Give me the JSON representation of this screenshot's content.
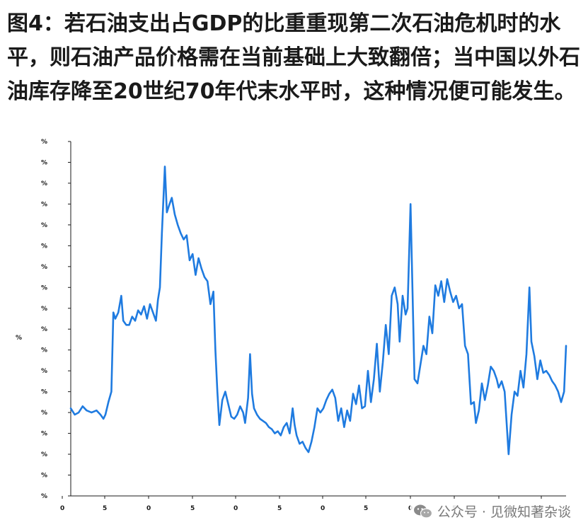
{
  "caption": "图4：若石油支出占GDP的比重重现第二次石油危机时的水平，则石油产品价格需在当前基础上大致翻倍；当中国以外石油库存降至20世纪70年代末水平时，这种情况便可能发生。",
  "watermark": {
    "text": "公众号 · 见微知著杂谈",
    "icon": "wechat-icon"
  },
  "colors": {
    "line": "#1f7be0",
    "axis": "#1a1a1a",
    "text": "#1a1a1a"
  },
  "chart_data": {
    "type": "line",
    "title": "",
    "xlabel": "",
    "ylabel": "%",
    "y_tick_labels": [
      "%",
      "%",
      "%",
      "%",
      "%",
      "%",
      "%",
      "%",
      "%",
      "%",
      "%",
      "%",
      "%",
      "%",
      "%",
      "%",
      "%",
      "%"
    ],
    "x_tick_labels": [
      "0",
      "5",
      "0",
      "5",
      "0",
      "5",
      "0",
      "5",
      "0",
      "5",
      "0",
      "5"
    ],
    "x_range": [
      0,
      1000
    ],
    "ylim": [
      0,
      17
    ],
    "grid": false,
    "legend": "none",
    "series": [
      {
        "values": [
          [
            0,
            4.2
          ],
          [
            8,
            3.9
          ],
          [
            16,
            4.0
          ],
          [
            24,
            4.3
          ],
          [
            32,
            4.1
          ],
          [
            42,
            4.0
          ],
          [
            52,
            4.1
          ],
          [
            60,
            3.9
          ],
          [
            66,
            3.7
          ],
          [
            70,
            3.9
          ],
          [
            76,
            4.5
          ],
          [
            82,
            5.0
          ],
          [
            86,
            8.8
          ],
          [
            90,
            8.5
          ],
          [
            96,
            8.8
          ],
          [
            102,
            9.6
          ],
          [
            106,
            8.4
          ],
          [
            112,
            8.2
          ],
          [
            118,
            8.2
          ],
          [
            124,
            8.6
          ],
          [
            130,
            8.4
          ],
          [
            136,
            8.9
          ],
          [
            142,
            8.7
          ],
          [
            148,
            9.1
          ],
          [
            154,
            8.5
          ],
          [
            160,
            9.2
          ],
          [
            166,
            8.8
          ],
          [
            172,
            8.4
          ],
          [
            176,
            9.4
          ],
          [
            180,
            10.0
          ],
          [
            184,
            12.6
          ],
          [
            190,
            15.8
          ],
          [
            194,
            13.6
          ],
          [
            198,
            13.9
          ],
          [
            204,
            14.3
          ],
          [
            210,
            13.5
          ],
          [
            216,
            13.0
          ],
          [
            222,
            12.6
          ],
          [
            228,
            12.3
          ],
          [
            234,
            12.5
          ],
          [
            240,
            11.3
          ],
          [
            246,
            11.6
          ],
          [
            252,
            10.6
          ],
          [
            258,
            11.4
          ],
          [
            264,
            10.9
          ],
          [
            270,
            10.5
          ],
          [
            276,
            10.3
          ],
          [
            282,
            9.2
          ],
          [
            288,
            9.8
          ],
          [
            292,
            7.0
          ],
          [
            296,
            5.0
          ],
          [
            300,
            3.4
          ],
          [
            306,
            4.6
          ],
          [
            312,
            5.0
          ],
          [
            318,
            4.4
          ],
          [
            324,
            3.8
          ],
          [
            330,
            3.7
          ],
          [
            336,
            3.9
          ],
          [
            342,
            4.3
          ],
          [
            348,
            4.0
          ],
          [
            352,
            3.5
          ],
          [
            358,
            4.7
          ],
          [
            362,
            6.8
          ],
          [
            366,
            4.9
          ],
          [
            370,
            4.2
          ],
          [
            376,
            3.9
          ],
          [
            382,
            3.7
          ],
          [
            388,
            3.6
          ],
          [
            394,
            3.5
          ],
          [
            400,
            3.3
          ],
          [
            406,
            3.2
          ],
          [
            412,
            3.0
          ],
          [
            418,
            3.1
          ],
          [
            424,
            2.9
          ],
          [
            430,
            3.3
          ],
          [
            436,
            3.5
          ],
          [
            442,
            3.0
          ],
          [
            448,
            4.2
          ],
          [
            452,
            3.4
          ],
          [
            456,
            2.9
          ],
          [
            462,
            2.5
          ],
          [
            468,
            2.6
          ],
          [
            474,
            2.3
          ],
          [
            480,
            2.1
          ],
          [
            486,
            2.6
          ],
          [
            492,
            3.3
          ],
          [
            498,
            4.2
          ],
          [
            504,
            4.0
          ],
          [
            510,
            4.2
          ],
          [
            516,
            4.6
          ],
          [
            522,
            4.9
          ],
          [
            528,
            5.1
          ],
          [
            534,
            4.7
          ],
          [
            540,
            3.6
          ],
          [
            546,
            4.2
          ],
          [
            552,
            3.3
          ],
          [
            558,
            4.1
          ],
          [
            564,
            3.6
          ],
          [
            570,
            4.9
          ],
          [
            576,
            4.4
          ],
          [
            582,
            5.3
          ],
          [
            588,
            4.2
          ],
          [
            594,
            4.3
          ],
          [
            600,
            6.0
          ],
          [
            606,
            4.5
          ],
          [
            612,
            5.6
          ],
          [
            618,
            7.3
          ],
          [
            624,
            5.0
          ],
          [
            630,
            6.4
          ],
          [
            636,
            8.2
          ],
          [
            642,
            6.8
          ],
          [
            648,
            9.6
          ],
          [
            654,
            10.0
          ],
          [
            660,
            9.2
          ],
          [
            664,
            7.4
          ],
          [
            670,
            9.6
          ],
          [
            676,
            8.7
          ],
          [
            680,
            9.0
          ],
          [
            686,
            14.0
          ],
          [
            690,
            9.8
          ],
          [
            694,
            5.6
          ],
          [
            700,
            5.4
          ],
          [
            706,
            6.3
          ],
          [
            712,
            7.2
          ],
          [
            718,
            6.8
          ],
          [
            724,
            8.6
          ],
          [
            730,
            7.8
          ],
          [
            736,
            10.1
          ],
          [
            742,
            9.6
          ],
          [
            748,
            10.3
          ],
          [
            754,
            9.3
          ],
          [
            760,
            10.4
          ],
          [
            766,
            9.8
          ],
          [
            772,
            9.3
          ],
          [
            778,
            9.6
          ],
          [
            784,
            9.0
          ],
          [
            790,
            9.2
          ],
          [
            796,
            7.2
          ],
          [
            802,
            6.8
          ],
          [
            808,
            4.4
          ],
          [
            814,
            4.5
          ],
          [
            818,
            3.5
          ],
          [
            824,
            4.1
          ],
          [
            830,
            5.4
          ],
          [
            836,
            4.6
          ],
          [
            842,
            5.3
          ],
          [
            848,
            6.2
          ],
          [
            854,
            6.0
          ],
          [
            860,
            5.6
          ],
          [
            864,
            5.2
          ],
          [
            870,
            5.5
          ],
          [
            876,
            5.0
          ],
          [
            880,
            3.5
          ],
          [
            884,
            2.0
          ],
          [
            890,
            3.9
          ],
          [
            896,
            5.0
          ],
          [
            902,
            4.8
          ],
          [
            908,
            6.0
          ],
          [
            914,
            5.2
          ],
          [
            920,
            6.8
          ],
          [
            926,
            10.0
          ],
          [
            930,
            7.4
          ],
          [
            936,
            6.7
          ],
          [
            942,
            5.6
          ],
          [
            948,
            6.5
          ],
          [
            954,
            5.9
          ],
          [
            960,
            6.0
          ],
          [
            966,
            5.8
          ],
          [
            972,
            5.5
          ],
          [
            978,
            5.3
          ],
          [
            984,
            5.0
          ],
          [
            990,
            4.5
          ],
          [
            996,
            5.0
          ],
          [
            1000,
            7.2
          ]
        ]
      }
    ]
  }
}
